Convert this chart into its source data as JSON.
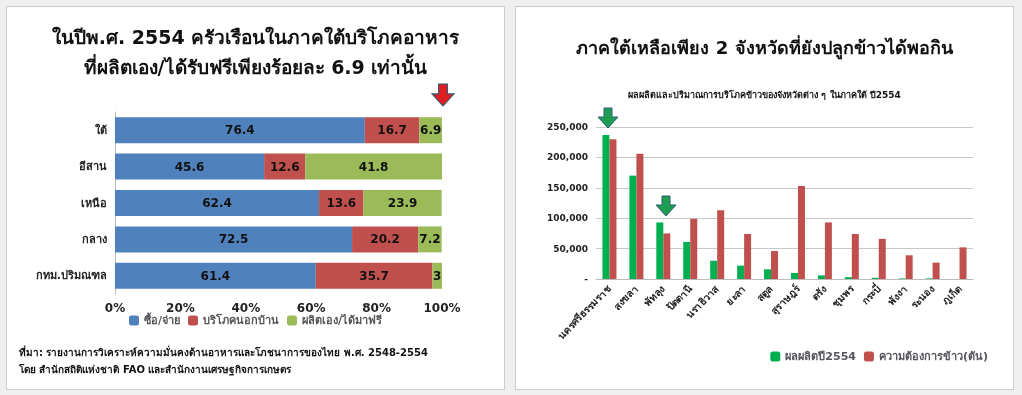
{
  "chart_data": [
    {
      "type": "bar",
      "title": "ในปีพ.ศ. 2554 ครัวเรือนในภาคใต้บริโภคอาหาร\nที่ผลิตเอง/ได้รับฟรีเพียงร้อยละ 6.9 เท่านั้น",
      "orientation": "horizontal",
      "stacked": true,
      "data_labels": true,
      "grid": false,
      "legend": "bottom",
      "categories": [
        "ใต้",
        "อีสาน",
        "เหนือ",
        "กลาง",
        "กทม.ปริมณฑล"
      ],
      "series": [
        {
          "name": "ซื้อ/จ่าย",
          "color": "#4f81bd",
          "values": [
            76.4,
            45.6,
            62.4,
            72.5,
            61.4
          ]
        },
        {
          "name": "บริโภคนอกบ้าน",
          "color": "#c0504d",
          "values": [
            16.7,
            12.6,
            13.6,
            20.2,
            35.7
          ]
        },
        {
          "name": "ผลิตเอง/ได้มาฟรี",
          "color": "#9bbb59",
          "values": [
            6.9,
            41.8,
            23.9,
            7.2,
            3
          ]
        }
      ],
      "xlim": [
        0,
        100
      ],
      "xticks": [
        {
          "value": 0,
          "label": "0%"
        },
        {
          "value": 20,
          "label": "20%"
        },
        {
          "value": 40,
          "label": "40%"
        },
        {
          "value": 60,
          "label": "60%"
        },
        {
          "value": 80,
          "label": "80%"
        },
        {
          "value": 100,
          "label": "100%"
        }
      ],
      "annotations": [
        "ที่มา: รายงานการวิเคราะห์ความมั่นคงด้านอาหารและโภชนาการของไทย พ.ศ. 2548-2554",
        "โดย สำนักสถิติแห่งชาติ FAO และสำนักงานเศรษฐกิจการเกษตร"
      ]
    },
    {
      "type": "bar",
      "title": "ภาคใต้เหลือเพียง 2 จังหวัดที่ยังปลูกข้าวได้พอกิน",
      "subtitle": "ผลผลิตและปริมาณการบริโภคข้าวของจังหวัดต่าง ๆ ในภาคใต้ ปี2554",
      "grid": "y",
      "legend": "bottom right",
      "categories": [
        "นครศรีธรรมราช",
        "สงขลา",
        "พัทลุง",
        "ปัตตานี",
        "นราธิวาส",
        "ยะลา",
        "สตูล",
        "สุราษฎร์",
        "ตรัง",
        "ชุมพร",
        "กระบี่",
        "พังงา",
        "ระนอง",
        "ภูเก็ต"
      ],
      "series": [
        {
          "name": "ผลผลิตปี2554",
          "color": "#00b050",
          "values": [
            237000,
            170000,
            93000,
            61000,
            30000,
            22000,
            16000,
            10000,
            6000,
            3000,
            2000,
            1000,
            1000,
            0
          ]
        },
        {
          "name": "ความต้องการข้าว(ตัน)",
          "color": "#c0504d",
          "values": [
            230000,
            206000,
            75000,
            99000,
            113000,
            74000,
            46000,
            153000,
            93000,
            74000,
            66000,
            39000,
            27000,
            52000
          ]
        }
      ],
      "ylim": [
        0,
        250000
      ],
      "yticks": [
        {
          "value": 0,
          "label": "-"
        },
        {
          "value": 50000,
          "label": "50,000"
        },
        {
          "value": 100000,
          "label": "100,000"
        },
        {
          "value": 150000,
          "label": "150,000"
        },
        {
          "value": 200000,
          "label": "200,000"
        },
        {
          "value": 250000,
          "label": "250,000"
        }
      ]
    }
  ]
}
